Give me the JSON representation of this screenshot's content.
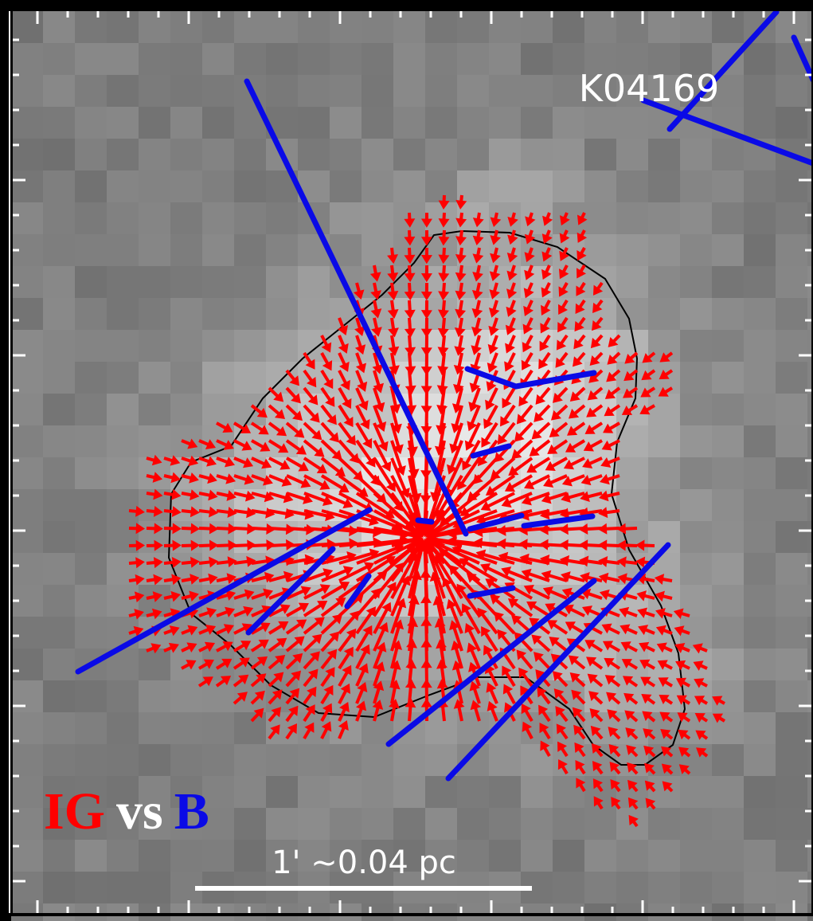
{
  "source_label": "K04169",
  "legend": {
    "first": "IG",
    "middle": "vs",
    "last": "B"
  },
  "scale_bar": "1' ~0.04 pc"
}
